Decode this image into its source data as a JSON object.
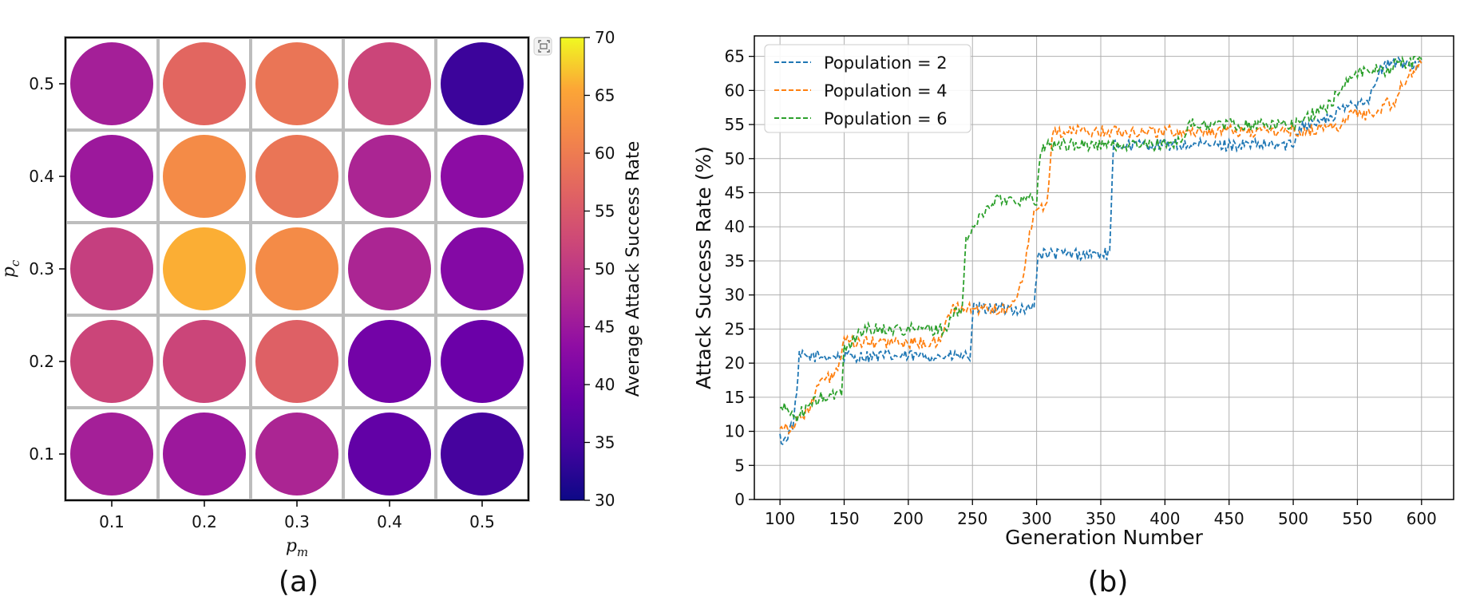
{
  "chart_data": [
    {
      "type": "heatmap",
      "panel_label": "(a)",
      "x_categories": [
        "0.1",
        "0.2",
        "0.3",
        "0.4",
        "0.5"
      ],
      "y_categories": [
        "0.1",
        "0.2",
        "0.3",
        "0.4",
        "0.5"
      ],
      "xlabel_base": "p",
      "xlabel_sub": "m",
      "ylabel_base": "p",
      "ylabel_sub": "c",
      "values": [
        [
          46,
          45,
          47,
          38,
          35
        ],
        [
          52,
          52,
          56,
          40,
          39
        ],
        [
          51,
          66,
          62,
          47,
          42
        ],
        [
          45,
          62,
          59,
          47,
          43
        ],
        [
          46,
          57,
          59,
          52,
          34
        ]
      ],
      "colorbar": {
        "label": "Average Attack Success Rate",
        "min": 30,
        "max": 70,
        "ticks": [
          30,
          35,
          40,
          45,
          50,
          55,
          60,
          65,
          70
        ],
        "colormap": "plasma"
      }
    },
    {
      "type": "line",
      "panel_label": "(b)",
      "xlabel": "Generation Number",
      "ylabel": "Attack Success Rate (%)",
      "xlim": [
        80,
        625
      ],
      "ylim": [
        0,
        68
      ],
      "xticks": [
        100,
        150,
        200,
        250,
        300,
        350,
        400,
        450,
        500,
        550,
        600
      ],
      "yticks": [
        0,
        5,
        10,
        15,
        20,
        25,
        30,
        35,
        40,
        45,
        50,
        55,
        60,
        65
      ],
      "grid": true,
      "legend_position": "top-left",
      "series": [
        {
          "name": "Population = 2",
          "color": "#1f77b4",
          "x": [
            100,
            103,
            106,
            110,
            113,
            115,
            120,
            150,
            200,
            240,
            248,
            251,
            260,
            298,
            301,
            310,
            350,
            357,
            360,
            380,
            400,
            450,
            500,
            505,
            512,
            530,
            540,
            552,
            560,
            568,
            575,
            590,
            600
          ],
          "y": [
            9,
            8.5,
            9.5,
            11,
            15,
            21,
            21,
            21,
            21,
            21,
            21,
            28,
            28,
            28,
            36,
            36,
            36,
            36,
            52,
            52,
            52,
            52,
            52,
            55,
            55,
            56,
            57.5,
            58.5,
            59,
            63,
            64,
            64,
            64
          ]
        },
        {
          "name": "Population = 4",
          "color": "#ff7f0e",
          "x": [
            100,
            108,
            112,
            120,
            125,
            130,
            140,
            145,
            150,
            160,
            200,
            225,
            230,
            235,
            250,
            270,
            280,
            286,
            290,
            298,
            305,
            308,
            312,
            320,
            350,
            400,
            450,
            500,
            512,
            520,
            540,
            545,
            550,
            560,
            572,
            578,
            585,
            590,
            600
          ],
          "y": [
            11,
            10.5,
            11,
            13,
            14,
            17,
            18,
            19,
            23,
            23,
            23,
            23,
            27,
            28,
            28,
            28,
            28,
            31,
            33,
            43,
            43,
            43,
            54,
            54,
            54,
            54,
            54,
            54,
            54,
            54.5,
            55,
            57,
            56.5,
            56.5,
            58,
            58,
            61,
            62,
            64
          ]
        },
        {
          "name": "Population = 6",
          "color": "#2ca02c",
          "x": [
            100,
            108,
            112,
            118,
            125,
            132,
            140,
            148,
            150,
            155,
            165,
            170,
            200,
            230,
            235,
            242,
            245,
            250,
            255,
            262,
            268,
            300,
            302,
            305,
            307,
            310,
            350,
            400,
            415,
            418,
            450,
            500,
            510,
            520,
            530,
            535,
            545,
            555,
            560,
            575,
            580,
            590,
            600
          ],
          "y": [
            13.5,
            13,
            12,
            13,
            14,
            15,
            15,
            16,
            22,
            23,
            25,
            25,
            25,
            25,
            27,
            28,
            38,
            40,
            41,
            43,
            44,
            44,
            49,
            52,
            52,
            52,
            52,
            52,
            53,
            55,
            55,
            55,
            56,
            57,
            58,
            60,
            62,
            63,
            63,
            63,
            64,
            64,
            64.5
          ]
        }
      ]
    }
  ]
}
